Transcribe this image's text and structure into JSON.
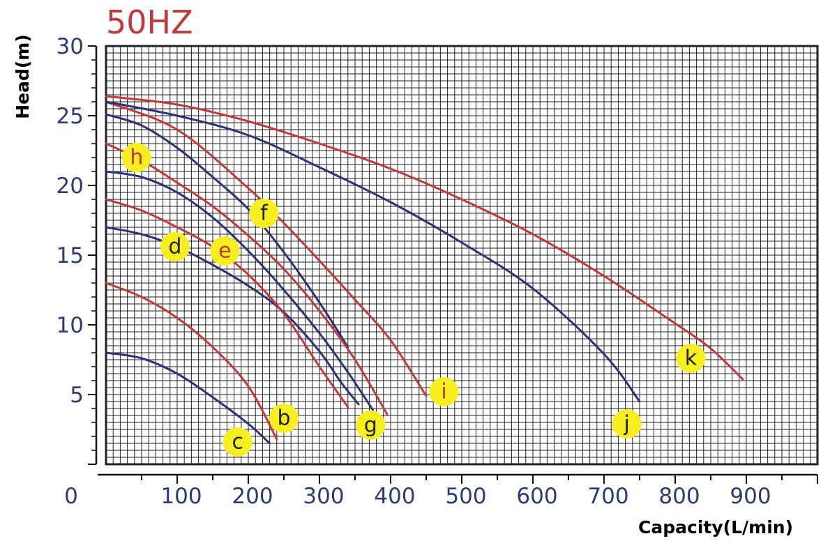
{
  "chart_data": {
    "type": "line",
    "title": "50HZ",
    "xlabel": "Capacity(L/min)",
    "ylabel": "Head(m)",
    "xlim": [
      0,
      1000
    ],
    "ylim": [
      0,
      30
    ],
    "x_ticks": [
      "0",
      "100",
      "200",
      "300",
      "400",
      "500",
      "600",
      "700",
      "800",
      "900"
    ],
    "y_ticks": [
      "5",
      "10",
      "15",
      "20",
      "25",
      "30"
    ],
    "grid": true,
    "colors": {
      "blue": "#2e3274",
      "red": "#c0393b",
      "marker": "#f7ee1f",
      "grid": "#222222",
      "title": "#c0393b",
      "tick": "#2f3a72"
    },
    "series": [
      {
        "name": "b",
        "color": "red",
        "label_color": "#222222",
        "label_at": [
          250,
          3.3
        ],
        "points": [
          [
            0,
            13
          ],
          [
            50,
            12
          ],
          [
            100,
            10.5
          ],
          [
            150,
            8.4
          ],
          [
            200,
            5.6
          ],
          [
            240,
            1.8
          ]
        ]
      },
      {
        "name": "c",
        "color": "blue",
        "label_color": "#222222",
        "label_at": [
          185,
          1.6
        ],
        "points": [
          [
            0,
            8
          ],
          [
            50,
            7.6
          ],
          [
            100,
            6.5
          ],
          [
            150,
            4.8
          ],
          [
            200,
            2.9
          ],
          [
            230,
            1.5
          ]
        ]
      },
      {
        "name": "d",
        "color": "blue",
        "label_color": "#222222",
        "label_at": [
          97,
          15.6
        ],
        "points": [
          [
            0,
            17
          ],
          [
            50,
            16.5
          ],
          [
            100,
            15.6
          ],
          [
            150,
            14.3
          ],
          [
            200,
            12.8
          ],
          [
            250,
            10.9
          ],
          [
            300,
            8.1
          ],
          [
            330,
            5.9
          ],
          [
            355,
            4.3
          ]
        ]
      },
      {
        "name": "e",
        "color": "red",
        "label_color": "#c0393b",
        "label_at": [
          167,
          15.3
        ],
        "points": [
          [
            0,
            19
          ],
          [
            50,
            18.2
          ],
          [
            100,
            17
          ],
          [
            150,
            15.6
          ],
          [
            200,
            13.6
          ],
          [
            250,
            10.8
          ],
          [
            300,
            7
          ],
          [
            340,
            4.1
          ]
        ]
      },
      {
        "name": "f",
        "color": "blue",
        "label_color": "#222222",
        "label_at": [
          222,
          18
        ],
        "points": [
          [
            0,
            25.1
          ],
          [
            50,
            24.3
          ],
          [
            100,
            22.7
          ],
          [
            150,
            20.6
          ],
          [
            200,
            18.3
          ],
          [
            250,
            15.2
          ],
          [
            300,
            11.6
          ],
          [
            340,
            8.4
          ]
        ]
      },
      {
        "name": "g",
        "color": "blue",
        "label_color": "#222222",
        "label_at": [
          372,
          2.8
        ],
        "points": [
          [
            0,
            21
          ],
          [
            50,
            20.6
          ],
          [
            100,
            19.5
          ],
          [
            150,
            17.7
          ],
          [
            200,
            15.3
          ],
          [
            250,
            12.5
          ],
          [
            300,
            9.4
          ],
          [
            340,
            6.6
          ],
          [
            375,
            3.9
          ]
        ]
      },
      {
        "name": "h",
        "color": "red",
        "label_color": "#c0393b",
        "label_at": [
          43,
          22
        ],
        "points": [
          [
            0,
            23
          ],
          [
            50,
            21.8
          ],
          [
            100,
            20.2
          ],
          [
            150,
            18.5
          ],
          [
            200,
            16.4
          ],
          [
            250,
            14
          ],
          [
            300,
            11
          ],
          [
            350,
            7.5
          ],
          [
            395,
            3.6
          ]
        ]
      },
      {
        "name": "i",
        "color": "red",
        "label_color": "#c0393b",
        "label_at": [
          475,
          5.2
        ],
        "points": [
          [
            0,
            26
          ],
          [
            100,
            24
          ],
          [
            200,
            19.8
          ],
          [
            250,
            17.3
          ],
          [
            300,
            14.6
          ],
          [
            350,
            11.8
          ],
          [
            400,
            8.9
          ],
          [
            450,
            4.9
          ]
        ]
      },
      {
        "name": "j",
        "color": "blue",
        "label_color": "#222222",
        "label_at": [
          732,
          2.9
        ],
        "points": [
          [
            0,
            26
          ],
          [
            100,
            25
          ],
          [
            200,
            23.6
          ],
          [
            300,
            21.3
          ],
          [
            400,
            18.8
          ],
          [
            500,
            15.9
          ],
          [
            600,
            12.6
          ],
          [
            700,
            7.9
          ],
          [
            750,
            4.5
          ]
        ]
      },
      {
        "name": "k",
        "color": "red",
        "label_color": "#222222",
        "label_at": [
          822,
          7.6
        ],
        "points": [
          [
            0,
            26.4
          ],
          [
            100,
            25.8
          ],
          [
            200,
            24.6
          ],
          [
            300,
            23
          ],
          [
            400,
            21.2
          ],
          [
            500,
            19
          ],
          [
            600,
            16.5
          ],
          [
            700,
            13.5
          ],
          [
            800,
            10.1
          ],
          [
            850,
            8.3
          ],
          [
            895,
            6.1
          ]
        ]
      }
    ]
  }
}
